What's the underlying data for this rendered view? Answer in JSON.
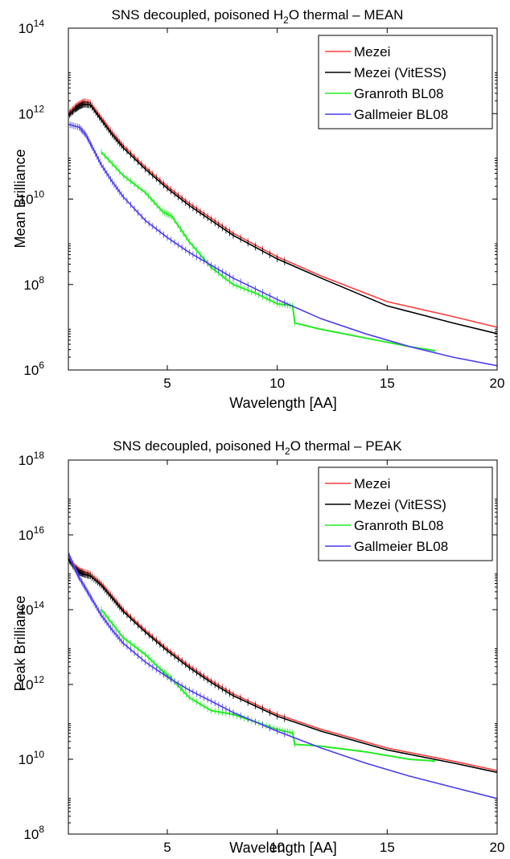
{
  "chart_data": [
    {
      "type": "line",
      "title_main": "SNS decoupled, poisoned H",
      "title_sub": "2",
      "title_rest": "O thermal – MEAN",
      "xlabel": "Wavelength [AA]",
      "ylabel": "Mean Brilliance",
      "xlim": [
        0.5,
        20
      ],
      "ylim_log10": [
        6,
        14
      ],
      "log_y": true,
      "x_ticks": [
        5,
        10,
        15,
        20
      ],
      "y_ticks": [
        {
          "exp": 6,
          "base": "10",
          "sup": "6"
        },
        {
          "exp": 8,
          "base": "10",
          "sup": "8"
        },
        {
          "exp": 10,
          "base": "10",
          "sup": "10"
        },
        {
          "exp": 12,
          "base": "10",
          "sup": "12"
        },
        {
          "exp": 14,
          "base": "10",
          "sup": "14"
        }
      ],
      "legend_position": "top-right",
      "series": [
        {
          "name": "Mezei",
          "color": "#ff3b3b",
          "x": [
            0.5,
            0.8,
            1.0,
            1.2,
            1.5,
            2.0,
            2.5,
            3.0,
            4.0,
            5.0,
            6.0,
            7.0,
            8.0,
            10.0,
            12.0,
            15.0,
            18.0,
            20.0
          ],
          "log10y": [
            12.0,
            12.15,
            12.22,
            12.28,
            12.25,
            11.9,
            11.55,
            11.25,
            10.75,
            10.3,
            9.9,
            9.55,
            9.2,
            8.65,
            8.2,
            7.6,
            7.25,
            7.0
          ]
        },
        {
          "name": "Mezei (VitESS)",
          "color": "#000000",
          "x": [
            0.5,
            0.8,
            1.0,
            1.2,
            1.5,
            2.0,
            2.5,
            3.0,
            4.0,
            5.0,
            6.0,
            7.0,
            8.0,
            10.0,
            12.0,
            15.0,
            18.0,
            20.0
          ],
          "log10y": [
            11.95,
            12.1,
            12.17,
            12.22,
            12.2,
            11.85,
            11.5,
            11.2,
            10.7,
            10.25,
            9.85,
            9.5,
            9.15,
            8.6,
            8.15,
            7.5,
            7.1,
            6.85
          ]
        },
        {
          "name": "Granroth BL08",
          "color": "#22ee22",
          "x": [
            2.0,
            3.0,
            4.0,
            4.8,
            5.2,
            6.0,
            7.0,
            8.0,
            9.0,
            10.0,
            10.7,
            10.8,
            12.0,
            14.0,
            16.0,
            17.2
          ],
          "log10y": [
            11.1,
            10.55,
            10.15,
            9.7,
            9.6,
            9.0,
            8.4,
            8.0,
            7.8,
            7.55,
            7.5,
            7.1,
            6.95,
            6.75,
            6.55,
            6.45
          ]
        },
        {
          "name": "Gallmeier BL08",
          "color": "#4a3cf0",
          "x": [
            0.5,
            1.0,
            1.3,
            1.6,
            2.0,
            2.5,
            3.0,
            4.0,
            5.0,
            6.0,
            7.0,
            8.0,
            10.0,
            12.0,
            14.0,
            16.0,
            18.0,
            20.0
          ],
          "log10y": [
            11.75,
            11.68,
            11.5,
            11.2,
            10.8,
            10.4,
            10.05,
            9.5,
            9.1,
            8.75,
            8.45,
            8.15,
            7.65,
            7.2,
            6.85,
            6.55,
            6.3,
            6.1
          ]
        }
      ]
    },
    {
      "type": "line",
      "title_main": "SNS decoupled, poisoned H",
      "title_sub": "2",
      "title_rest": "O thermal – PEAK",
      "xlabel": "Wavelength [AA]",
      "ylabel": "Peak Brilliance",
      "xlim": [
        0.5,
        20
      ],
      "ylim_log10": [
        8,
        18
      ],
      "log_y": true,
      "x_ticks": [
        5,
        10,
        15,
        20
      ],
      "y_ticks": [
        {
          "exp": 8,
          "base": "10",
          "sup": "8"
        },
        {
          "exp": 10,
          "base": "10",
          "sup": "10"
        },
        {
          "exp": 12,
          "base": "10",
          "sup": "12"
        },
        {
          "exp": 14,
          "base": "10",
          "sup": "14"
        },
        {
          "exp": 16,
          "base": "10",
          "sup": "16"
        },
        {
          "exp": 18,
          "base": "10",
          "sup": "18"
        }
      ],
      "legend_position": "top-right",
      "series": [
        {
          "name": "Mezei",
          "color": "#ff3b3b",
          "x": [
            0.5,
            0.8,
            1.0,
            1.2,
            1.5,
            2.0,
            2.5,
            3.0,
            4.0,
            5.0,
            6.0,
            7.0,
            8.0,
            10.0,
            12.0,
            15.0,
            18.0,
            20.0
          ],
          "log10y": [
            15.4,
            15.15,
            15.05,
            15.0,
            14.95,
            14.7,
            14.35,
            14.0,
            13.45,
            12.95,
            12.5,
            12.1,
            11.75,
            11.2,
            10.8,
            10.3,
            9.95,
            9.7
          ]
        },
        {
          "name": "Mezei (VitESS)",
          "color": "#000000",
          "x": [
            0.5,
            0.8,
            1.0,
            1.2,
            1.5,
            2.0,
            2.5,
            3.0,
            4.0,
            5.0,
            6.0,
            7.0,
            8.0,
            10.0,
            12.0,
            15.0,
            18.0,
            20.0
          ],
          "log10y": [
            15.35,
            15.1,
            15.0,
            14.95,
            14.9,
            14.65,
            14.3,
            13.95,
            13.4,
            12.9,
            12.45,
            12.05,
            11.7,
            11.15,
            10.75,
            10.25,
            9.9,
            9.65
          ]
        },
        {
          "name": "Granroth BL08",
          "color": "#22ee22",
          "x": [
            2.0,
            3.0,
            4.0,
            4.8,
            5.2,
            6.0,
            7.0,
            8.0,
            9.0,
            10.0,
            10.7,
            10.8,
            12.0,
            14.0,
            16.0,
            17.2
          ],
          "log10y": [
            14.0,
            13.25,
            12.8,
            12.35,
            12.15,
            11.65,
            11.3,
            11.2,
            11.0,
            10.8,
            10.7,
            10.4,
            10.35,
            10.2,
            10.0,
            9.95
          ]
        },
        {
          "name": "Gallmeier BL08",
          "color": "#4a3cf0",
          "x": [
            0.5,
            0.8,
            1.0,
            1.3,
            1.6,
            2.0,
            2.5,
            3.0,
            4.0,
            5.0,
            6.0,
            7.0,
            8.0,
            10.0,
            12.0,
            14.0,
            16.0,
            18.0,
            20.0
          ],
          "log10y": [
            15.5,
            15.1,
            14.85,
            14.55,
            14.25,
            13.85,
            13.45,
            13.1,
            12.6,
            12.2,
            11.85,
            11.55,
            11.25,
            10.75,
            10.3,
            9.9,
            9.55,
            9.25,
            8.95
          ]
        }
      ]
    }
  ]
}
